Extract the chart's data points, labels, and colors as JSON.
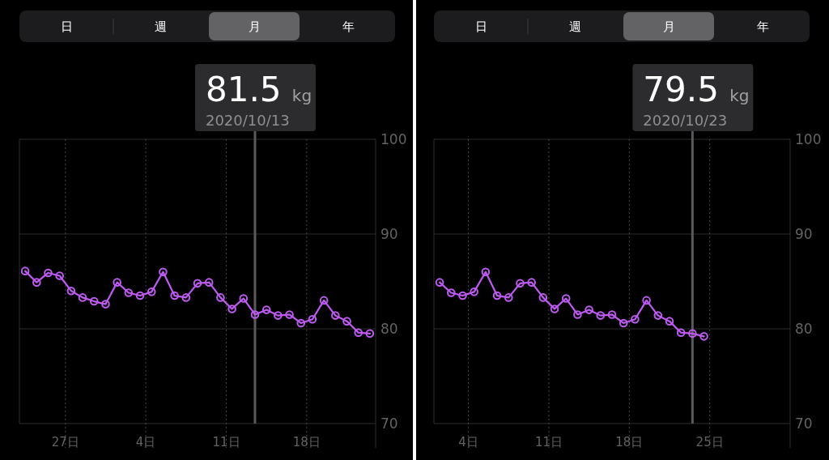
{
  "chart_data": [
    {
      "type": "line",
      "x": [
        "2020-09-23T12:00",
        "2020-09-24T12:00",
        "2020-09-25T12:00",
        "2020-09-26T12:00",
        "2020-09-27T12:00",
        "2020-09-28T12:00",
        "2020-09-29T12:00",
        "2020-09-30T12:00",
        "2020-10-01T12:00",
        "2020-10-02T12:00",
        "2020-10-03T12:00",
        "2020-10-04T12:00",
        "2020-10-05T12:00",
        "2020-10-06T12:00",
        "2020-10-07T12:00",
        "2020-10-08T12:00",
        "2020-10-09T12:00",
        "2020-10-10T12:00",
        "2020-10-11T12:00",
        "2020-10-12T12:00",
        "2020-10-13T12:00",
        "2020-10-14T12:00",
        "2020-10-15T12:00",
        "2020-10-16T12:00",
        "2020-10-17T12:00",
        "2020-10-18T12:00",
        "2020-10-19T12:00",
        "2020-10-20T12:00",
        "2020-10-21T12:00",
        "2020-10-22T12:00",
        "2020-10-23T12:00"
      ],
      "series": [
        {
          "color": "#bf5af2",
          "values": [
            86.1,
            84.9,
            85.9,
            85.6,
            84.0,
            83.3,
            82.9,
            82.6,
            84.9,
            83.8,
            83.5,
            83.9,
            86.0,
            83.5,
            83.3,
            84.8,
            84.9,
            83.3,
            82.1,
            83.2,
            81.5,
            82.0,
            81.4,
            81.5,
            80.6,
            81.0,
            83.0,
            81.4,
            80.8,
            79.6,
            79.5
          ]
        }
      ],
      "xlim": [
        "2020-09-23",
        "2020-10-24"
      ],
      "xticks": [
        {
          "value": "2020-09-27",
          "label": "27日"
        },
        {
          "value": "2020-10-04",
          "label": "4日"
        },
        {
          "value": "2020-10-11",
          "label": "11日"
        },
        {
          "value": "2020-10-18",
          "label": "18日"
        }
      ],
      "ylim": [
        70,
        100
      ],
      "yticks": [
        70,
        80,
        90,
        100
      ],
      "grid": true,
      "marker": "circle",
      "line_style": "solid",
      "ref_lines": [
        {
          "axis": "x",
          "value": "2020-10-13T12:00",
          "color": "#5a5a5e"
        }
      ],
      "annotations": [
        "日",
        "週",
        "月",
        "年",
        "81.5 kg",
        "2020/10/13"
      ]
    },
    {
      "type": "line",
      "x": [
        "2020-10-01T12:00",
        "2020-10-02T12:00",
        "2020-10-03T12:00",
        "2020-10-04T12:00",
        "2020-10-05T12:00",
        "2020-10-06T12:00",
        "2020-10-07T12:00",
        "2020-10-08T12:00",
        "2020-10-09T12:00",
        "2020-10-10T12:00",
        "2020-10-11T12:00",
        "2020-10-12T12:00",
        "2020-10-13T12:00",
        "2020-10-14T12:00",
        "2020-10-15T12:00",
        "2020-10-16T12:00",
        "2020-10-17T12:00",
        "2020-10-18T12:00",
        "2020-10-19T12:00",
        "2020-10-20T12:00",
        "2020-10-21T12:00",
        "2020-10-22T12:00",
        "2020-10-23T12:00",
        "2020-10-24T12:00"
      ],
      "series": [
        {
          "color": "#bf5af2",
          "values": [
            84.9,
            83.8,
            83.5,
            83.9,
            86.0,
            83.5,
            83.3,
            84.8,
            84.9,
            83.3,
            82.1,
            83.2,
            81.5,
            82.0,
            81.4,
            81.5,
            80.6,
            81.0,
            83.0,
            81.4,
            80.8,
            79.6,
            79.5,
            79.2
          ]
        }
      ],
      "xlim": [
        "2020-10-01",
        "2020-11-01"
      ],
      "xticks": [
        {
          "value": "2020-10-04",
          "label": "4日"
        },
        {
          "value": "2020-10-11",
          "label": "11日"
        },
        {
          "value": "2020-10-18",
          "label": "18日"
        },
        {
          "value": "2020-10-25",
          "label": "25日"
        }
      ],
      "ylim": [
        70,
        100
      ],
      "yticks": [
        70,
        80,
        90,
        100
      ],
      "grid": true,
      "marker": "circle",
      "line_style": "solid",
      "ref_lines": [
        {
          "axis": "x",
          "value": "2020-10-23T12:00",
          "color": "#5a5a5e"
        }
      ],
      "annotations": [
        "日",
        "週",
        "月",
        "年",
        "79.5 kg",
        "2020/10/23"
      ]
    }
  ]
}
